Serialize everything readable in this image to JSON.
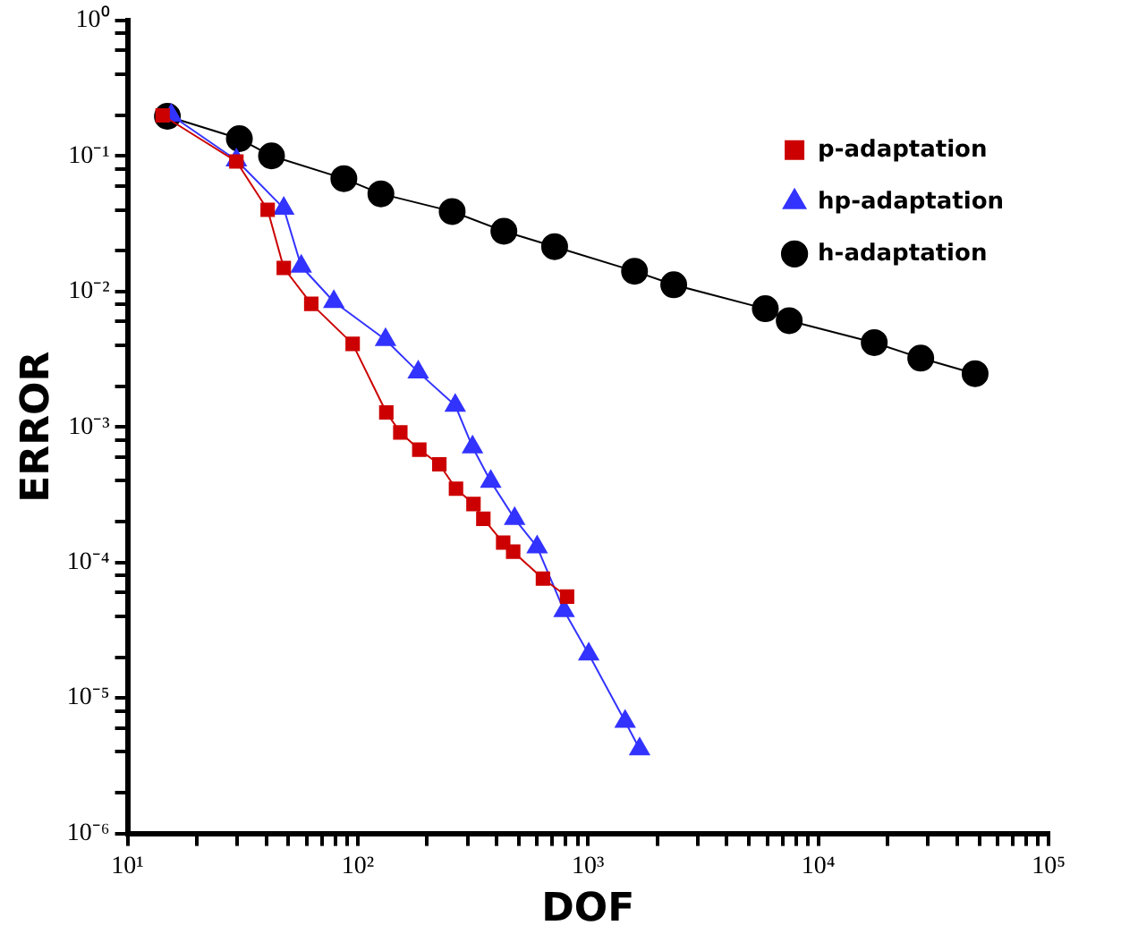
{
  "chart_data": {
    "type": "line",
    "xlabel": "DOF",
    "ylabel": "ERROR",
    "log": "xy",
    "grid": false,
    "legend": "top right",
    "line_style": "solid",
    "xlim": [
      10,
      100000
    ],
    "xticks": [
      {
        "value": 10,
        "label": "10¹"
      },
      {
        "value": 20,
        "label": null
      },
      {
        "value": 30,
        "label": null
      },
      {
        "value": 40,
        "label": null
      },
      {
        "value": 50,
        "label": null
      },
      {
        "value": 60,
        "label": null
      },
      {
        "value": 70,
        "label": null
      },
      {
        "value": 80,
        "label": null
      },
      {
        "value": 90,
        "label": null
      },
      {
        "value": 100,
        "label": "10²"
      },
      {
        "value": 200,
        "label": null
      },
      {
        "value": 300,
        "label": null
      },
      {
        "value": 400,
        "label": null
      },
      {
        "value": 500,
        "label": null
      },
      {
        "value": 600,
        "label": null
      },
      {
        "value": 700,
        "label": null
      },
      {
        "value": 800,
        "label": null
      },
      {
        "value": 900,
        "label": null
      },
      {
        "value": 1000,
        "label": "10³"
      },
      {
        "value": 2000,
        "label": null
      },
      {
        "value": 3000,
        "label": null
      },
      {
        "value": 4000,
        "label": null
      },
      {
        "value": 5000,
        "label": null
      },
      {
        "value": 6000,
        "label": null
      },
      {
        "value": 7000,
        "label": null
      },
      {
        "value": 8000,
        "label": null
      },
      {
        "value": 9000,
        "label": null
      },
      {
        "value": 10000,
        "label": "10⁴"
      },
      {
        "value": 20000,
        "label": null
      },
      {
        "value": 30000,
        "label": null
      },
      {
        "value": 40000,
        "label": null
      },
      {
        "value": 50000,
        "label": null
      },
      {
        "value": 60000,
        "label": null
      },
      {
        "value": 70000,
        "label": null
      },
      {
        "value": 80000,
        "label": null
      },
      {
        "value": 90000,
        "label": null
      },
      {
        "value": 100000,
        "label": "10⁵"
      }
    ],
    "ylim": [
      1e-06,
      1
    ],
    "yticks": [
      {
        "value": 1e-06,
        "label": "10⁻⁶"
      },
      {
        "value": 2e-06,
        "label": null
      },
      {
        "value": 4e-06,
        "label": null
      },
      {
        "value": 6e-06,
        "label": null
      },
      {
        "value": 8e-06,
        "label": null
      },
      {
        "value": 1e-05,
        "label": "10⁻⁵"
      },
      {
        "value": 2e-05,
        "label": null
      },
      {
        "value": 4e-05,
        "label": null
      },
      {
        "value": 6e-05,
        "label": null
      },
      {
        "value": 8e-05,
        "label": null
      },
      {
        "value": 0.0001,
        "label": "10⁻⁴"
      },
      {
        "value": 0.0002,
        "label": null
      },
      {
        "value": 0.0004,
        "label": null
      },
      {
        "value": 0.0006,
        "label": null
      },
      {
        "value": 0.0008,
        "label": null
      },
      {
        "value": 0.001,
        "label": "10⁻³"
      },
      {
        "value": 0.002,
        "label": null
      },
      {
        "value": 0.004,
        "label": null
      },
      {
        "value": 0.006,
        "label": null
      },
      {
        "value": 0.008,
        "label": null
      },
      {
        "value": 0.01,
        "label": "10⁻²"
      },
      {
        "value": 0.02,
        "label": null
      },
      {
        "value": 0.04,
        "label": null
      },
      {
        "value": 0.06,
        "label": null
      },
      {
        "value": 0.08,
        "label": null
      },
      {
        "value": 0.1,
        "label": "10⁻¹"
      },
      {
        "value": 0.2,
        "label": null
      },
      {
        "value": 0.4,
        "label": null
      },
      {
        "value": 0.6,
        "label": null
      },
      {
        "value": 0.8,
        "label": null
      },
      {
        "value": 1,
        "label": "10⁰"
      }
    ],
    "series": [
      {
        "name": "p-adaptation",
        "color": "#cc0000",
        "marker": "square",
        "x": [
          14.2,
          29.7,
          40.6,
          47.7,
          62.8,
          95,
          133,
          153,
          185,
          226,
          267,
          318,
          351,
          428,
          473,
          637,
          811
        ],
        "values": [
          0.199,
          0.091,
          0.04,
          0.0149,
          0.0081,
          0.0041,
          0.00128,
          0.00091,
          0.00068,
          0.00053,
          0.00035,
          0.00027,
          0.00021,
          0.00014,
          0.00012,
          7.6e-05,
          5.6e-05
        ]
      },
      {
        "name": "hp-adaptation",
        "color": "#3333ff",
        "marker": "triangle",
        "x": [
          15.5,
          29.7,
          47.7,
          56.8,
          78.7,
          132,
          183,
          265,
          315,
          378,
          480,
          601,
          787,
          1007,
          1449,
          1675
        ],
        "values": [
          0.199,
          0.093,
          0.041,
          0.0153,
          0.0084,
          0.0044,
          0.00254,
          0.00144,
          0.00071,
          0.000395,
          0.00021,
          0.00013,
          4.4e-05,
          2.1e-05,
          6.7e-06,
          4.2e-06
        ]
      },
      {
        "name": "h-adaptation",
        "color": "#000000",
        "marker": "circle",
        "x": [
          14.9,
          30.6,
          42.2,
          87,
          126,
          257,
          431,
          716,
          1592,
          2356,
          5888,
          7477,
          17500,
          27860,
          47980
        ],
        "values": [
          0.196,
          0.134,
          0.1,
          0.068,
          0.0525,
          0.0389,
          0.0278,
          0.0214,
          0.0141,
          0.0112,
          0.00745,
          0.00608,
          0.00419,
          0.00322,
          0.00247
        ]
      }
    ]
  }
}
